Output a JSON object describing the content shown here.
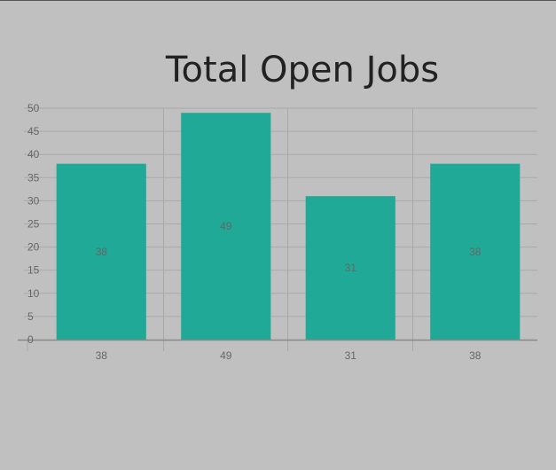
{
  "chart_data": {
    "type": "bar",
    "title": "Total Open Jobs",
    "categories": [
      "38",
      "49",
      "31",
      "38"
    ],
    "values": [
      38,
      49,
      31,
      38
    ],
    "ylim": [
      0,
      50
    ],
    "y_ticks": [
      0,
      5,
      10,
      15,
      20,
      25,
      30,
      35,
      40,
      45,
      50
    ],
    "grid": true,
    "data_labels": true,
    "bar_color": "#21a998"
  }
}
